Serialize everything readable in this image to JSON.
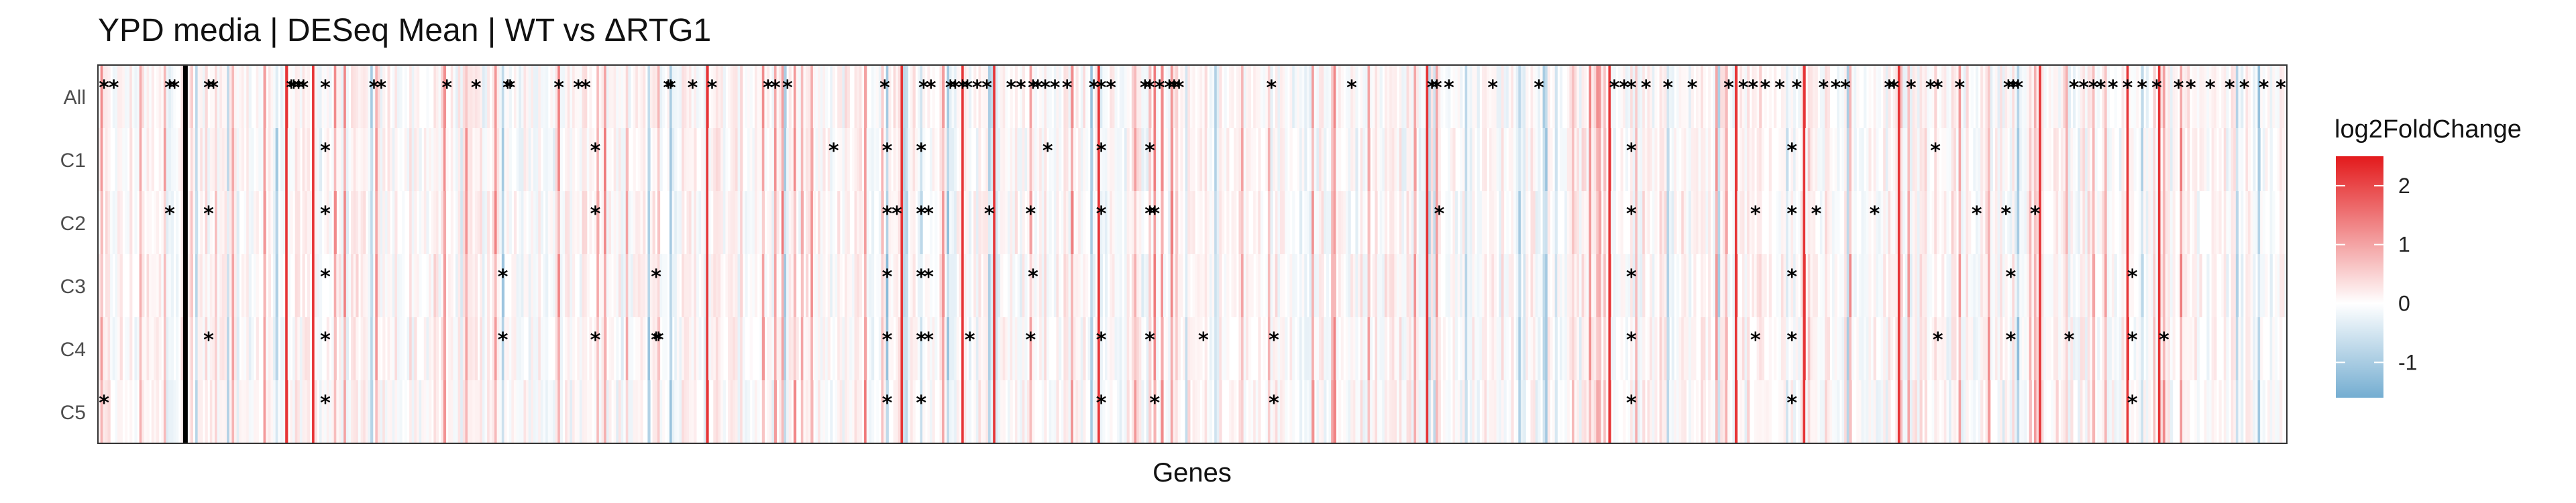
{
  "chart_data": {
    "type": "heatmap",
    "title": "YPD media | DESeq Mean | WT vs ΔRTG1",
    "xlabel": "Genes",
    "ylabel": "",
    "rows": [
      "All",
      "C1",
      "C2",
      "C3",
      "C4",
      "C5"
    ],
    "color_scale": {
      "title": "log2FoldChange",
      "min": -1.6,
      "max": 2.5,
      "ticks": [
        -1,
        0,
        1,
        2
      ],
      "low_color": "#74add1",
      "mid_color": "#ffffff",
      "high_color": "#e31a1c"
    },
    "gene_count": 900,
    "marked_genes": [
      35
    ],
    "strong_up_genes": [
      77,
      88,
      250,
      330,
      355,
      368,
      411,
      546,
      621,
      673,
      701,
      740,
      798,
      834,
      847
    ],
    "significance_marks": {
      "All": [
        2,
        6,
        29,
        31,
        45,
        47,
        79,
        80,
        82,
        84,
        93,
        113,
        116,
        143,
        155,
        168,
        169,
        189,
        197,
        200,
        234,
        235,
        244,
        252,
        275,
        278,
        283,
        323,
        339,
        342,
        350,
        352,
        355,
        357,
        361,
        365,
        375,
        379,
        384,
        386,
        389,
        393,
        398,
        409,
        412,
        416,
        430,
        432,
        436,
        440,
        442,
        444,
        482,
        515,
        548,
        550,
        555,
        573,
        592,
        623,
        627,
        630,
        636,
        645,
        655,
        670,
        676,
        680,
        685,
        691,
        698,
        709,
        714,
        718,
        736,
        738,
        745,
        753,
        756,
        765,
        785,
        787,
        789,
        812,
        816,
        820,
        823,
        828,
        834,
        840,
        846,
        855,
        860,
        868,
        876,
        882,
        890,
        897
      ],
      "C1": [
        93,
        204,
        302,
        324,
        338,
        390,
        412,
        432,
        630,
        696,
        755
      ],
      "C2": [
        29,
        45,
        93,
        204,
        324,
        328,
        338,
        341,
        366,
        383,
        412,
        432,
        434,
        551,
        630,
        681,
        696,
        706,
        730,
        772,
        784,
        796
      ],
      "C3": [
        93,
        166,
        229,
        324,
        338,
        341,
        384,
        630,
        696,
        786,
        836
      ],
      "C4": [
        45,
        93,
        166,
        204,
        229,
        230,
        324,
        338,
        341,
        358,
        383,
        412,
        432,
        454,
        483,
        630,
        681,
        696,
        756,
        786,
        810,
        836,
        849
      ],
      "C5": [
        2,
        93,
        324,
        338,
        412,
        434,
        483,
        630,
        696,
        836
      ]
    }
  }
}
